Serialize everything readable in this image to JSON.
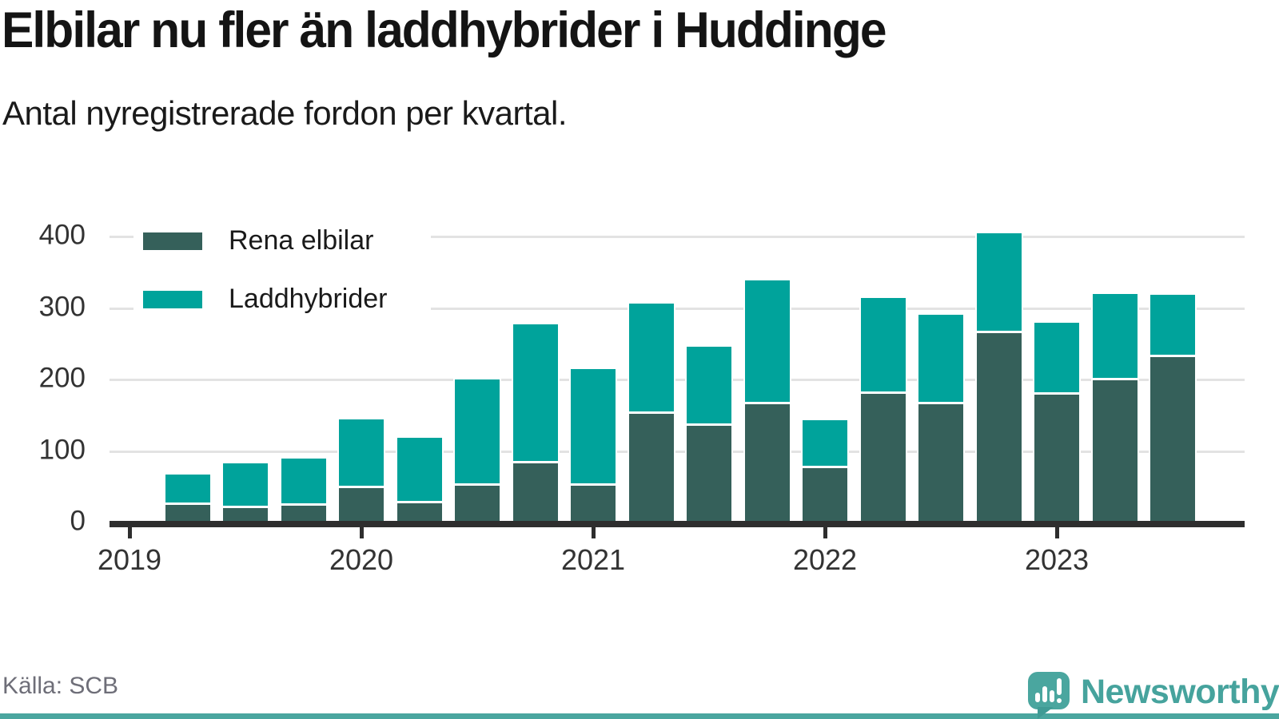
{
  "title": "Elbilar nu fler än laddhybrider i Huddinge",
  "subtitle": "Antal nyregistrerade fordon per kvartal.",
  "source": "Källa: SCB",
  "brand": {
    "name": "Newsworthy"
  },
  "colors": {
    "rena_elbilar": "#35605A",
    "laddhybrider": "#00A39B",
    "axis": "#2E2E2E",
    "grid": "#E3E3E3",
    "brand_teal": "#4AA69F",
    "source_text": "#6E6E78"
  },
  "legend": {
    "items": [
      {
        "label": "Rena elbilar",
        "color": "#35605A"
      },
      {
        "label": "Laddhybrider",
        "color": "#00A39B"
      }
    ]
  },
  "chart_data": {
    "type": "bar",
    "stacked": true,
    "title": "Elbilar nu fler än laddhybrider i Huddinge",
    "subtitle": "Antal nyregistrerade fordon per kvartal.",
    "xlabel": "",
    "ylabel": "Antal nyregistrerade fordon",
    "categories": [
      "2019 K2",
      "2019 K3",
      "2019 K4",
      "2020 K1",
      "2020 K2",
      "2020 K3",
      "2020 K4",
      "2021 K1",
      "2021 K2",
      "2021 K3",
      "2021 K4",
      "2022 K1",
      "2022 K2",
      "2022 K3",
      "2022 K4",
      "2023 K1",
      "2023 K2",
      "2023 K3"
    ],
    "series": [
      {
        "name": "Rena elbilar",
        "color": "#35605A",
        "values": [
          25,
          20,
          23,
          48,
          27,
          51,
          83,
          51,
          152,
          135,
          165,
          76,
          180,
          165,
          265,
          179,
          199,
          231
        ]
      },
      {
        "name": "Laddhybrider",
        "color": "#00A39B",
        "values": [
          42,
          63,
          66,
          96,
          91,
          149,
          194,
          163,
          154,
          111,
          173,
          67,
          134,
          125,
          139,
          100,
          120,
          87
        ]
      }
    ],
    "totals": [
      67,
      83,
      89,
      144,
      118,
      200,
      277,
      214,
      306,
      246,
      338,
      143,
      314,
      290,
      404,
      279,
      319,
      318
    ],
    "x_tick_labels": [
      "2019",
      "2020",
      "2021",
      "2022",
      "2023"
    ],
    "y_ticks": [
      0,
      100,
      200,
      300,
      400
    ],
    "ylim": [
      0,
      420
    ],
    "grid": "horizontal",
    "legend_position": "inside-top-left"
  }
}
